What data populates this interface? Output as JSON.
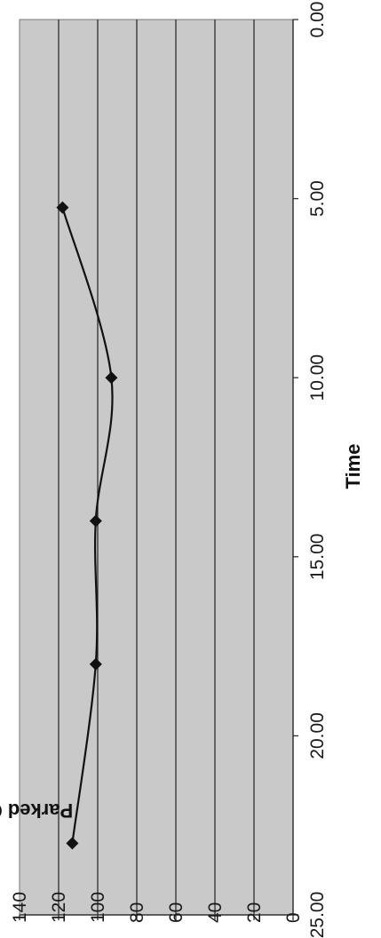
{
  "chart_data": {
    "type": "scatter",
    "orientation": "rotated-90",
    "title": "",
    "xlabel": "Time",
    "ylabel": "Parked Cars",
    "xlim": [
      0,
      25
    ],
    "ylim": [
      0,
      140
    ],
    "x_ticks": [
      "0.00",
      "5.00",
      "10.00",
      "15.00",
      "20.00",
      "25.00"
    ],
    "y_ticks": [
      "0",
      "20",
      "40",
      "60",
      "80",
      "100",
      "120",
      "140"
    ],
    "grid": "major-y",
    "smoothed_line": true,
    "series": [
      {
        "x": [
          5.25,
          10.0,
          14.0,
          18.0,
          23.0
        ],
        "y": [
          118,
          93,
          101,
          101,
          113
        ]
      }
    ],
    "colors": {
      "plot_background": "#c9c9c9",
      "gridline": "#2e2e2e",
      "line": "#111111",
      "marker": "#111111"
    }
  }
}
